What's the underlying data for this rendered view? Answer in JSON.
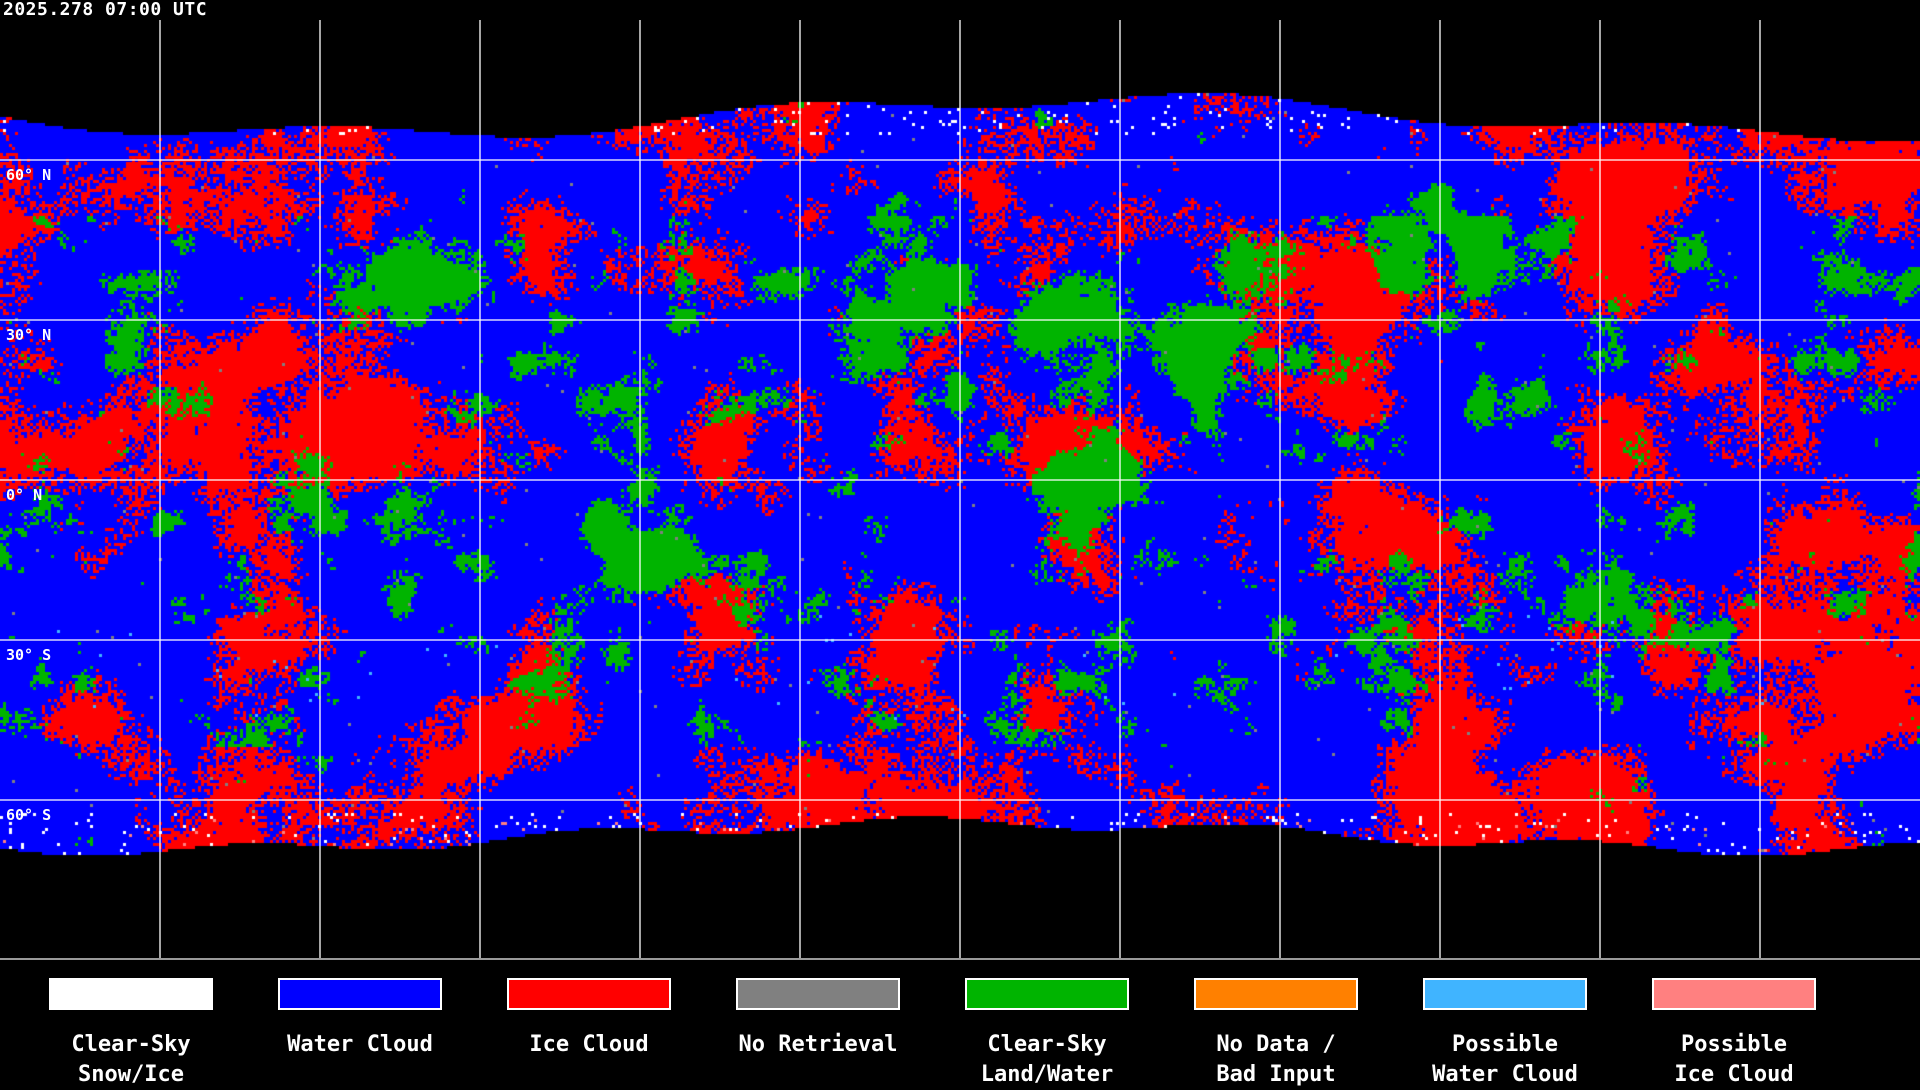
{
  "title": "2025.278 07:00 UTC",
  "map": {
    "projection": "equirectangular",
    "grid_spacing_degrees": 30,
    "grid_color": "#ffffff",
    "coastline_color": "#ffffff",
    "lat_labels": [
      "60° N",
      "30° N",
      "0° N",
      "30° S",
      "60° S"
    ]
  },
  "legend": [
    {
      "label_line1": "Clear-Sky",
      "label_line2": "Snow/Ice",
      "color": "#ffffff"
    },
    {
      "label_line1": "Water Cloud",
      "label_line2": "",
      "color": "#0000ff"
    },
    {
      "label_line1": "Ice Cloud",
      "label_line2": "",
      "color": "#ff0000"
    },
    {
      "label_line1": "No Retrieval",
      "label_line2": "",
      "color": "#808080"
    },
    {
      "label_line1": "Clear-Sky",
      "label_line2": "Land/Water",
      "color": "#00b400"
    },
    {
      "label_line1": "No Data /",
      "label_line2": "Bad Input",
      "color": "#ff8000"
    },
    {
      "label_line1": "Possible",
      "label_line2": "Water Cloud",
      "color": "#40b4ff"
    },
    {
      "label_line1": "Possible",
      "label_line2": "Ice Cloud",
      "color": "#ff8080"
    }
  ]
}
